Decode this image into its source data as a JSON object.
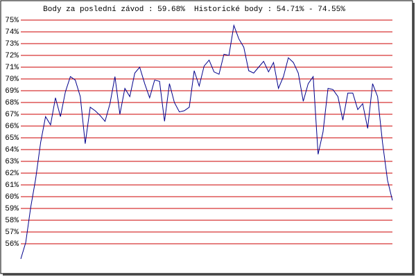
{
  "chart_data": {
    "type": "line",
    "title": "Body za poslední závod : 59.68%  Historické body : 54.71% - 74.55%",
    "color": "#00008b",
    "grid": true,
    "grid_color": "#cc0000",
    "ylim": [
      54,
      76
    ],
    "yticks": [
      {
        "value": 56,
        "label": "56%"
      },
      {
        "value": 57,
        "label": "57%"
      },
      {
        "value": 58,
        "label": "58%"
      },
      {
        "value": 59,
        "label": "59%"
      },
      {
        "value": 60,
        "label": "60%"
      },
      {
        "value": 61,
        "label": "61%"
      },
      {
        "value": 62,
        "label": "62%"
      },
      {
        "value": 63,
        "label": "63%"
      },
      {
        "value": 64,
        "label": "64%"
      },
      {
        "value": 65,
        "label": "65%"
      },
      {
        "value": 66,
        "label": "66%"
      },
      {
        "value": 67,
        "label": "67%"
      },
      {
        "value": 68,
        "label": "68%"
      },
      {
        "value": 69,
        "label": "69%"
      },
      {
        "value": 70,
        "label": "70%"
      },
      {
        "value": 71,
        "label": "71%"
      },
      {
        "value": 72,
        "label": "72%"
      },
      {
        "value": 73,
        "label": "73%"
      },
      {
        "value": 74,
        "label": "74%"
      },
      {
        "value": 75,
        "label": "75%"
      }
    ],
    "values": [
      54.71,
      56.1,
      59.1,
      61.5,
      64.6,
      66.8,
      66.1,
      68.4,
      66.8,
      68.9,
      70.2,
      69.9,
      68.5,
      64.5,
      67.6,
      67.3,
      66.9,
      66.4,
      67.9,
      70.2,
      67.0,
      69.2,
      68.5,
      70.5,
      71.0,
      69.6,
      68.4,
      69.9,
      69.8,
      66.4,
      69.6,
      68.0,
      67.2,
      67.3,
      67.6,
      70.7,
      69.4,
      71.1,
      71.6,
      70.6,
      70.4,
      72.1,
      72.0,
      74.55,
      73.4,
      72.7,
      70.7,
      70.5,
      71.0,
      71.5,
      70.6,
      71.4,
      69.2,
      70.2,
      71.8,
      71.4,
      70.5,
      68.1,
      69.6,
      70.2,
      63.6,
      65.5,
      69.2,
      69.1,
      68.5,
      66.5,
      68.8,
      68.8,
      67.4,
      67.9,
      65.8,
      69.6,
      68.5,
      64.6,
      61.4,
      59.68
    ]
  }
}
